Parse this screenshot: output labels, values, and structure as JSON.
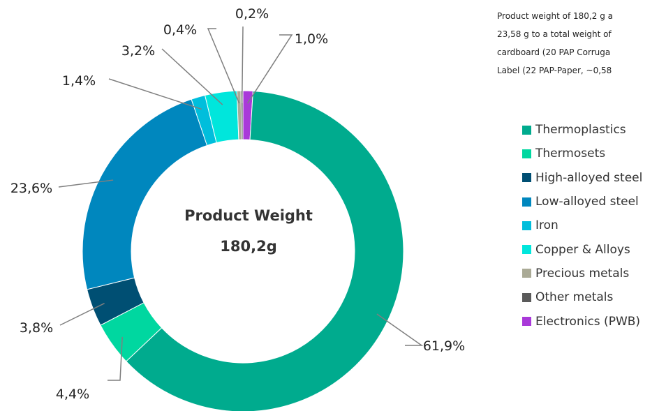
{
  "note": {
    "lines": [
      "Product weight of 180,2 g a",
      "23,58 g to a total weight of",
      "cardboard (20 PAP Corruga",
      "Label (22 PAP-Paper, ~0,58"
    ]
  },
  "chart_data": {
    "type": "donut",
    "title": "",
    "center_label": [
      "Product Weight",
      "180,2g"
    ],
    "legend_position": "right",
    "categories": [
      "Thermoplastics",
      "Thermosets",
      "High-alloyed steel",
      "Low-alloyed steel",
      "Iron",
      "Copper & Alloys",
      "Precious metals",
      "Other metals",
      "Electronics (PWB)"
    ],
    "legend_colors": [
      "#00ab8e",
      "#00d7a0",
      "#004f73",
      "#0087be",
      "#00bedc",
      "#00e6dc",
      "#aaaa96",
      "#5a5a5a",
      "#a939d9"
    ],
    "slices": [
      {
        "category": "Electronics (PWB)",
        "value": 1.0,
        "label": "1,0%",
        "color": "#a939d9"
      },
      {
        "category": "Thermoplastics",
        "value": 61.9,
        "label": "61,9%",
        "color": "#00ab8e"
      },
      {
        "category": "Thermosets",
        "value": 4.4,
        "label": "4,4%",
        "color": "#00d7a0"
      },
      {
        "category": "High-alloyed steel",
        "value": 3.8,
        "label": "3,8%",
        "color": "#004f73"
      },
      {
        "category": "Low-alloyed steel",
        "value": 23.6,
        "label": "23,6%",
        "color": "#0087be"
      },
      {
        "category": "Iron",
        "value": 1.4,
        "label": "1,4%",
        "color": "#00bedc"
      },
      {
        "category": "Copper & Alloys",
        "value": 3.2,
        "label": "3,2%",
        "color": "#00e6dc"
      },
      {
        "category": "Precious metals",
        "value": 0.4,
        "label": "0,4%",
        "color": "#aaaa96"
      },
      {
        "category": "Other metals",
        "value": 0.2,
        "label": "0,2%",
        "color": "#5a5a5a"
      }
    ]
  }
}
